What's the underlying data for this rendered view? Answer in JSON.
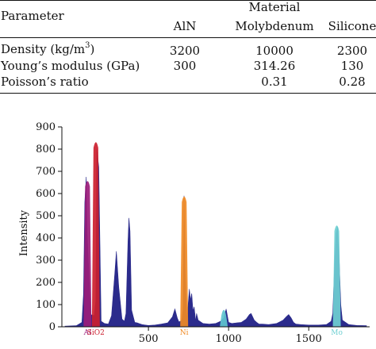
{
  "table": {
    "header_left": "Parameter",
    "header_group": "Material",
    "columns": [
      "AlN",
      "Molybdenum",
      "Silicone"
    ],
    "rows": [
      {
        "label": "Density (kg/m",
        "label_sup": "3",
        "label_tail": ")",
        "values": [
          "3200",
          "10000",
          "2300"
        ]
      },
      {
        "label": "Young’s modulus (GPa)",
        "label_sup": "",
        "label_tail": "",
        "values": [
          "300",
          "314.26",
          "130"
        ]
      },
      {
        "label": "Poisson’s ratio",
        "label_sup": "",
        "label_tail": "",
        "values": [
          "",
          "0.31",
          "0.28"
        ]
      }
    ]
  },
  "chart_data": {
    "type": "area",
    "title": "",
    "xlabel": "",
    "ylabel": "Intensity",
    "xlim": [
      -40,
      1880
    ],
    "ylim": [
      0,
      900
    ],
    "xticks": [
      500,
      1000,
      1500
    ],
    "yticks": [
      0,
      100,
      200,
      300,
      400,
      500,
      600,
      700,
      800,
      900
    ],
    "grid": false,
    "colors": {
      "spectrum": "#2b2b8c",
      "Al": "#9b1c7a",
      "SiO2": "#cc1f2e",
      "Ni": "#f08a24",
      "Mo_ni": "#5fc6cf",
      "Mo": "#6fd0d2"
    },
    "series": [
      {
        "x": [
          -20,
          50,
          85,
          95,
          103,
          112,
          118,
          140,
          162,
          172,
          178,
          190,
          205,
          225,
          250,
          270,
          290,
          300,
          315,
          335,
          350,
          360,
          372,
          378,
          385,
          395,
          415,
          430,
          440,
          460,
          480,
          500,
          540,
          580,
          620,
          650,
          665,
          680,
          690,
          700,
          708,
          716,
          722,
          730,
          740,
          748,
          755,
          762,
          770,
          778,
          785,
          795,
          800,
          810,
          840,
          880,
          920,
          950,
          970,
          985,
          1000,
          1020,
          1050,
          1080,
          1110,
          1130,
          1140,
          1150,
          1160,
          1175,
          1190,
          1210,
          1250,
          1300,
          1340,
          1360,
          1375,
          1390,
          1405,
          1420,
          1450,
          1500,
          1560,
          1610,
          1640,
          1650,
          1660,
          1670,
          1680,
          1690,
          1700,
          1710,
          1750,
          1800,
          1860
        ],
        "values": [
          3,
          5,
          20,
          150,
          560,
          675,
          420,
          55,
          50,
          120,
          800,
          720,
          25,
          15,
          12,
          50,
          240,
          340,
          180,
          35,
          25,
          60,
          380,
          490,
          430,
          75,
          20,
          18,
          15,
          10,
          8,
          6,
          8,
          12,
          18,
          45,
          80,
          40,
          22,
          25,
          30,
          80,
          590,
          240,
          30,
          100,
          170,
          120,
          150,
          70,
          90,
          25,
          60,
          30,
          15,
          12,
          15,
          25,
          40,
          80,
          20,
          15,
          18,
          20,
          35,
          55,
          60,
          45,
          30,
          20,
          12,
          12,
          10,
          15,
          30,
          45,
          55,
          40,
          20,
          12,
          10,
          8,
          8,
          10,
          25,
          60,
          250,
          420,
          450,
          300,
          100,
          30,
          10,
          6,
          5
        ]
      }
    ],
    "element_markers": [
      {
        "label": "Al",
        "x": 120,
        "value": 660
      },
      {
        "label": "SiO2",
        "x": 172,
        "value": 835
      },
      {
        "label": "Ni",
        "x": 723,
        "value": 590
      },
      {
        "label": "",
        "x": 970,
        "value": 80
      },
      {
        "label": "Mo",
        "x": 1675,
        "value": 460
      }
    ]
  }
}
